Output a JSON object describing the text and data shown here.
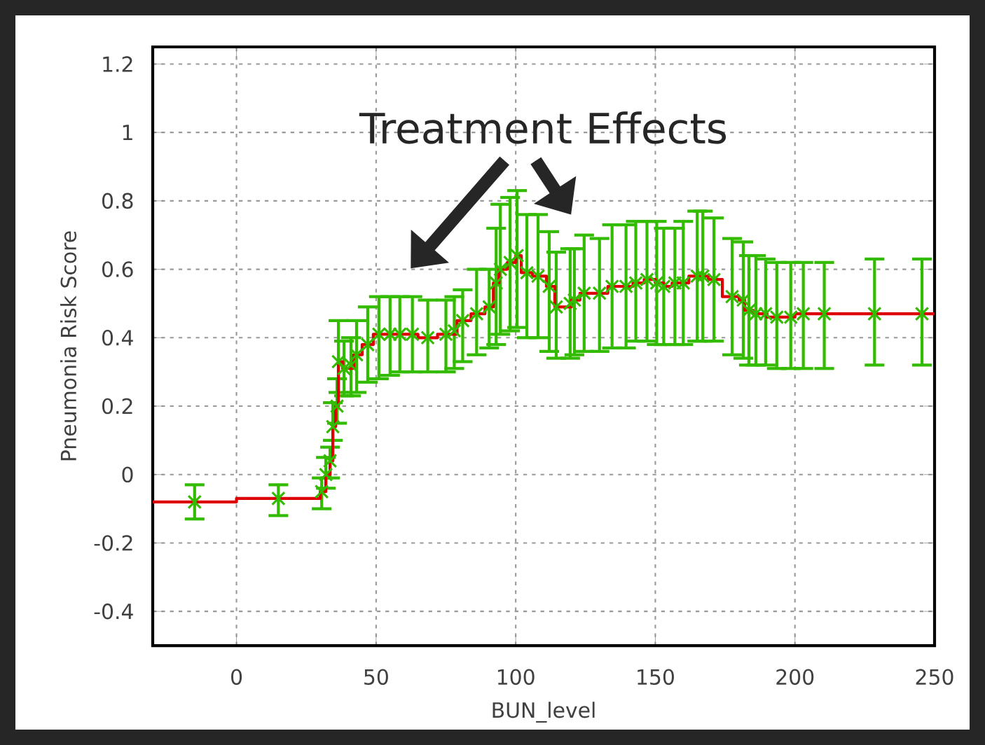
{
  "chart_data": {
    "type": "scatter",
    "xlabel": "BUN_level",
    "ylabel": "Pneumonia Risk Score",
    "annotations": [
      "Treatment Effects"
    ],
    "xlim": [
      -30,
      250
    ],
    "xticks": [
      0,
      50,
      100,
      150,
      200,
      250
    ],
    "ylim": [
      -0.5,
      1.25
    ],
    "yticks": [
      -0.4,
      -0.2,
      0,
      0.2,
      0.4,
      0.6,
      0.8,
      1,
      1.2
    ],
    "grid": true,
    "series": [
      {
        "marker": "cross",
        "color": "#33bb00",
        "x": [
          -15,
          15,
          30.5,
          32,
          33.5,
          34.5,
          36,
          36.5,
          38.5,
          41,
          43,
          47,
          51,
          55,
          58.5,
          63,
          68.5,
          75,
          78,
          81,
          86,
          90.5,
          93,
          94.5,
          98,
          100.5,
          104,
          108,
          112,
          114.5,
          119.5,
          121,
          124.5,
          130,
          134.5,
          139.5,
          143,
          147,
          150.5,
          153,
          157,
          160,
          165,
          167,
          171,
          177.5,
          181.5,
          183.5,
          186,
          189.5,
          193.5,
          198.5,
          203,
          210.5,
          228.5,
          245.5
        ],
        "values": [
          -0.08,
          -0.07,
          -0.05,
          0.0,
          0.04,
          0.14,
          0.2,
          0.33,
          0.31,
          0.32,
          0.35,
          0.38,
          0.41,
          0.41,
          0.41,
          0.41,
          0.4,
          0.41,
          0.42,
          0.45,
          0.47,
          0.49,
          0.56,
          0.6,
          0.62,
          0.64,
          0.59,
          0.58,
          0.55,
          0.49,
          0.5,
          0.51,
          0.53,
          0.53,
          0.55,
          0.55,
          0.56,
          0.57,
          0.56,
          0.55,
          0.56,
          0.56,
          0.58,
          0.58,
          0.57,
          0.52,
          0.51,
          0.48,
          0.47,
          0.47,
          0.46,
          0.46,
          0.47,
          0.47,
          0.47,
          0.47
        ],
        "errors": [
          [
            -0.13,
            -0.03
          ],
          [
            -0.12,
            -0.03
          ],
          [
            -0.1,
            -0.01
          ],
          [
            -0.04,
            0.05
          ],
          [
            -0.01,
            0.08
          ],
          [
            0.1,
            0.21
          ],
          [
            0.15,
            0.28
          ],
          [
            0.24,
            0.45
          ],
          [
            0.23,
            0.39
          ],
          [
            0.23,
            0.4
          ],
          [
            0.24,
            0.45
          ],
          [
            0.27,
            0.49
          ],
          [
            0.28,
            0.52
          ],
          [
            0.29,
            0.52
          ],
          [
            0.3,
            0.52
          ],
          [
            0.3,
            0.52
          ],
          [
            0.3,
            0.51
          ],
          [
            0.3,
            0.51
          ],
          [
            0.31,
            0.52
          ],
          [
            0.33,
            0.54
          ],
          [
            0.35,
            0.6
          ],
          [
            0.37,
            0.6
          ],
          [
            0.38,
            0.72
          ],
          [
            0.41,
            0.79
          ],
          [
            0.42,
            0.81
          ],
          [
            0.43,
            0.83
          ],
          [
            0.4,
            0.76
          ],
          [
            0.4,
            0.76
          ],
          [
            0.36,
            0.71
          ],
          [
            0.34,
            0.65
          ],
          [
            0.34,
            0.66
          ],
          [
            0.35,
            0.66
          ],
          [
            0.36,
            0.7
          ],
          [
            0.36,
            0.69
          ],
          [
            0.37,
            0.73
          ],
          [
            0.37,
            0.73
          ],
          [
            0.39,
            0.74
          ],
          [
            0.39,
            0.74
          ],
          [
            0.38,
            0.74
          ],
          [
            0.38,
            0.72
          ],
          [
            0.38,
            0.72
          ],
          [
            0.38,
            0.74
          ],
          [
            0.39,
            0.77
          ],
          [
            0.39,
            0.77
          ],
          [
            0.39,
            0.75
          ],
          [
            0.35,
            0.69
          ],
          [
            0.34,
            0.68
          ],
          [
            0.32,
            0.64
          ],
          [
            0.32,
            0.64
          ],
          [
            0.32,
            0.63
          ],
          [
            0.31,
            0.62
          ],
          [
            0.31,
            0.62
          ],
          [
            0.31,
            0.62
          ],
          [
            0.31,
            0.62
          ],
          [
            0.32,
            0.63
          ],
          [
            0.32,
            0.63
          ]
        ]
      },
      {
        "type": "step",
        "color": "#dd0000",
        "x": [
          -30,
          0,
          30,
          32,
          33.5,
          34.5,
          35.5,
          36.5,
          38,
          42,
          45,
          49,
          60,
          65,
          72,
          79,
          84,
          89,
          92,
          94,
          97,
          100,
          102,
          106,
          111,
          114,
          120,
          123,
          133,
          142,
          146,
          150,
          153,
          156,
          162,
          169,
          174,
          180,
          182,
          185,
          190,
          200,
          216,
          250
        ],
        "values": [
          -0.08,
          -0.07,
          -0.05,
          0.0,
          0.04,
          0.14,
          0.2,
          0.33,
          0.31,
          0.35,
          0.38,
          0.41,
          0.41,
          0.4,
          0.41,
          0.45,
          0.47,
          0.49,
          0.56,
          0.6,
          0.62,
          0.64,
          0.59,
          0.58,
          0.55,
          0.49,
          0.51,
          0.53,
          0.55,
          0.56,
          0.57,
          0.56,
          0.55,
          0.56,
          0.58,
          0.57,
          0.52,
          0.51,
          0.48,
          0.47,
          0.46,
          0.47,
          0.47,
          0.47
        ]
      }
    ]
  }
}
